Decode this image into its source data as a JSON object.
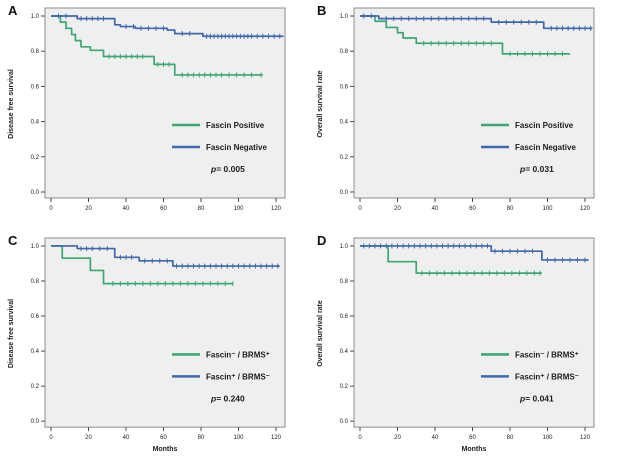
{
  "figure": {
    "background": "#ffffff",
    "plot_background": "#f0eff0",
    "plot_border": "#8c8c8c"
  },
  "colors": {
    "green": "#3aa873",
    "blue": "#3e67ad",
    "text": "#1c1c1c",
    "axis": "#4a4a4a"
  },
  "chart_data": [
    {
      "type": "line",
      "subtype": "kaplan-meier-step",
      "label": "A",
      "xlabel": "",
      "ylabel": "Disease free survival",
      "x_ticks": [
        0,
        20,
        40,
        60,
        80,
        100,
        120
      ],
      "y_ticks": [
        "0.0",
        "0.2",
        "0.4",
        "0.6",
        "0.8",
        "1.0"
      ],
      "xlim": [
        -3,
        128
      ],
      "ylim": [
        0,
        1.05
      ],
      "legend_position": "center-right",
      "grid": "off",
      "p_text": "p= 0.005",
      "series": [
        {
          "name": "Fascin Positive",
          "color": "green",
          "steps": [
            [
              0,
              1.0
            ],
            [
              5,
              0.965
            ],
            [
              8,
              0.93
            ],
            [
              11,
              0.895
            ],
            [
              13,
              0.86
            ],
            [
              16,
              0.825
            ],
            [
              21,
              0.805
            ],
            [
              28,
              0.77
            ],
            [
              55,
              0.725
            ],
            [
              66,
              0.665
            ],
            [
              113,
              0.665
            ]
          ],
          "censors": [
            31,
            34,
            37,
            40,
            43,
            46,
            49,
            57,
            60,
            63,
            70,
            73,
            76,
            79,
            82,
            85,
            88,
            91,
            95,
            99,
            103,
            107,
            112
          ]
        },
        {
          "name": "Fascin Negative",
          "color": "blue",
          "steps": [
            [
              0,
              1.0
            ],
            [
              14,
              0.985
            ],
            [
              34,
              0.95
            ],
            [
              37,
              0.94
            ],
            [
              45,
              0.93
            ],
            [
              62,
              0.92
            ],
            [
              66,
              0.9
            ],
            [
              81,
              0.885
            ],
            [
              124,
              0.885
            ]
          ],
          "censors": [
            4,
            8,
            16,
            19,
            22,
            25,
            28,
            40,
            44,
            48,
            52,
            56,
            60,
            70,
            74,
            83,
            85,
            87,
            89,
            91,
            93,
            95,
            97,
            99,
            101,
            103,
            105,
            107,
            110,
            113,
            116,
            119,
            122
          ]
        }
      ]
    },
    {
      "type": "line",
      "subtype": "kaplan-meier-step",
      "label": "B",
      "xlabel": "",
      "ylabel": "Overall survival rate",
      "x_ticks": [
        0,
        20,
        40,
        60,
        80,
        100,
        120
      ],
      "y_ticks": [
        "0.0",
        "0.2",
        "0.4",
        "0.6",
        "0.8",
        "1.0"
      ],
      "xlim": [
        -3,
        128
      ],
      "ylim": [
        0,
        1.05
      ],
      "legend_position": "center-right",
      "grid": "off",
      "p_text": "p= 0.031",
      "series": [
        {
          "name": "Fascin Positive",
          "color": "green",
          "steps": [
            [
              0,
              1.0
            ],
            [
              8,
              0.97
            ],
            [
              14,
              0.935
            ],
            [
              20,
              0.905
            ],
            [
              23,
              0.875
            ],
            [
              30,
              0.845
            ],
            [
              76,
              0.785
            ],
            [
              112,
              0.785
            ]
          ],
          "censors": [
            34,
            38,
            42,
            46,
            50,
            54,
            58,
            62,
            66,
            70,
            80,
            84,
            88,
            92,
            96,
            100,
            104,
            108
          ]
        },
        {
          "name": "Fascin Negative",
          "color": "blue",
          "steps": [
            [
              0,
              1.0
            ],
            [
              10,
              0.985
            ],
            [
              70,
              0.965
            ],
            [
              98,
              0.93
            ],
            [
              124,
              0.93
            ]
          ],
          "censors": [
            2,
            6,
            14,
            18,
            22,
            26,
            30,
            34,
            38,
            42,
            46,
            50,
            54,
            58,
            62,
            66,
            74,
            78,
            82,
            86,
            90,
            94,
            102,
            105,
            108,
            111,
            114,
            117,
            120,
            123
          ]
        }
      ]
    },
    {
      "type": "line",
      "subtype": "kaplan-meier-step",
      "label": "C",
      "xlabel": "Months",
      "ylabel": "Disease free survival",
      "x_ticks": [
        0,
        20,
        40,
        60,
        80,
        100,
        120
      ],
      "y_ticks": [
        "0.0",
        "0.2",
        "0.4",
        "0.6",
        "0.8",
        "1.0"
      ],
      "xlim": [
        -3,
        128
      ],
      "ylim": [
        0,
        1.05
      ],
      "legend_position": "center-right",
      "grid": "off",
      "p_text": "p= 0.240",
      "series": [
        {
          "name": "Fascin⁻ / BRMS⁺",
          "color": "green",
          "steps": [
            [
              0,
              1.0
            ],
            [
              6,
              0.93
            ],
            [
              21,
              0.86
            ],
            [
              28,
              0.785
            ],
            [
              97,
              0.785
            ]
          ],
          "censors": [
            33,
            37,
            41,
            45,
            49,
            53,
            57,
            61,
            65,
            69,
            73,
            77,
            81,
            85,
            89,
            93,
            97
          ]
        },
        {
          "name": "Fascin⁺ / BRMS⁻",
          "color": "blue",
          "steps": [
            [
              0,
              1.0
            ],
            [
              14,
              0.985
            ],
            [
              34,
              0.935
            ],
            [
              47,
              0.915
            ],
            [
              65,
              0.885
            ],
            [
              122,
              0.885
            ]
          ],
          "censors": [
            16,
            19,
            22,
            26,
            30,
            37,
            40,
            43,
            50,
            54,
            58,
            62,
            67,
            70,
            73,
            76,
            79,
            82,
            85,
            88,
            91,
            94,
            97,
            100,
            103,
            106,
            109,
            112,
            115,
            118,
            121
          ]
        }
      ]
    },
    {
      "type": "line",
      "subtype": "kaplan-meier-step",
      "label": "D",
      "xlabel": "Months",
      "ylabel": "Overall survival rate",
      "x_ticks": [
        0,
        20,
        40,
        60,
        80,
        100,
        120
      ],
      "y_ticks": [
        "0.0",
        "0.2",
        "0.4",
        "0.6",
        "0.8",
        "1.0"
      ],
      "xlim": [
        -3,
        128
      ],
      "ylim": [
        0,
        1.05
      ],
      "legend_position": "center-right",
      "grid": "off",
      "p_text": "p= 0.041",
      "series": [
        {
          "name": "Fascin⁻ / BRMS⁺",
          "color": "green",
          "steps": [
            [
              0,
              1.0
            ],
            [
              15,
              0.91
            ],
            [
              30,
              0.845
            ],
            [
              97,
              0.845
            ]
          ],
          "censors": [
            33,
            37,
            41,
            45,
            49,
            53,
            57,
            61,
            65,
            69,
            73,
            77,
            81,
            85,
            89,
            93,
            96
          ]
        },
        {
          "name": "Fascin⁺ / BRMS⁻",
          "color": "blue",
          "steps": [
            [
              0,
              1.0
            ],
            [
              70,
              0.97
            ],
            [
              97,
              0.92
            ],
            [
              122,
              0.92
            ]
          ],
          "censors": [
            2,
            5,
            8,
            11,
            14,
            17,
            20,
            23,
            26,
            29,
            32,
            35,
            38,
            41,
            44,
            47,
            50,
            53,
            56,
            59,
            62,
            65,
            68,
            72,
            76,
            80,
            84,
            88,
            92,
            100,
            104,
            108,
            112,
            116,
            120
          ]
        }
      ]
    }
  ]
}
